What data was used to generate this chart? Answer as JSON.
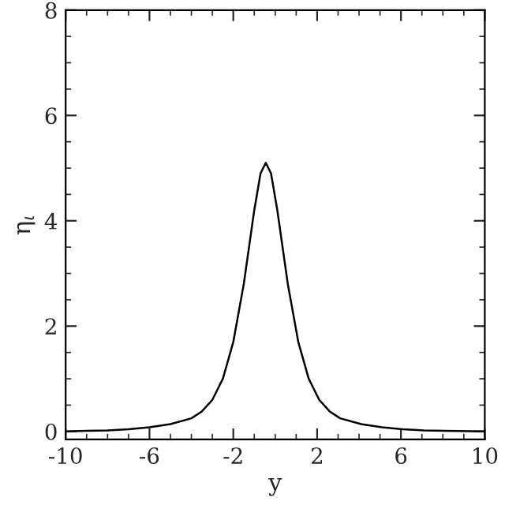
{
  "chart_data": {
    "type": "line",
    "xlabel": "y",
    "ylabel": "η$_{ι}$",
    "x": [
      -10,
      -9,
      -8,
      -7,
      -6,
      -5,
      -4,
      -3.5,
      -3,
      -2.5,
      -2,
      -1.5,
      -1,
      -0.7,
      -0.45,
      -0.2,
      0.1,
      0.6,
      1.1,
      1.6,
      2.1,
      2.6,
      3.1,
      4.1,
      5.1,
      6.1,
      7.1,
      8.1,
      10
    ],
    "series": [
      {
        "color": "#000000",
        "values": [
          0.0,
          0.01,
          0.02,
          0.04,
          0.08,
          0.14,
          0.25,
          0.38,
          0.6,
          1.0,
          1.7,
          2.8,
          4.2,
          4.9,
          5.1,
          4.9,
          4.2,
          2.8,
          1.7,
          1.0,
          0.6,
          0.38,
          0.25,
          0.14,
          0.08,
          0.04,
          0.02,
          0.01,
          0.0
        ]
      }
    ],
    "xlim": [
      -10,
      10
    ],
    "ylim": [
      -0.15,
      8
    ],
    "xticks": [
      -10,
      -6,
      -2,
      2,
      6,
      10
    ],
    "yticks": [
      0,
      2,
      4,
      6,
      8
    ],
    "grid": false,
    "legend": false,
    "marker": "none",
    "line_style": "solid"
  }
}
